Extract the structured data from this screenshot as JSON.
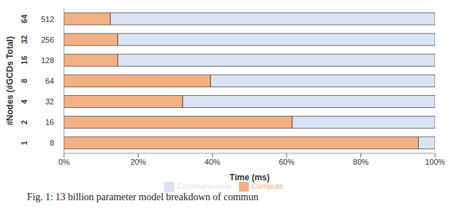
{
  "chart_data": {
    "type": "bar",
    "orientation": "horizontal",
    "stacked": true,
    "caption": "Fig. 1: 13 billion parameter model breakdown of commun",
    "x_label": "Time (ms)",
    "y_label": "#Nodes (#GCDs Total)",
    "categories": [
      "64",
      "32",
      "16",
      "8",
      "4",
      "2",
      "1"
    ],
    "gcds": [
      "512",
      "256",
      "128",
      "64",
      "32",
      "16",
      "8"
    ],
    "series": [
      {
        "name": "Compute",
        "color": "#f4b183",
        "values": [
          12.5,
          14.5,
          14.5,
          39.5,
          32,
          61.5,
          95.5
        ]
      },
      {
        "name": "Communication",
        "color": "#dae3f3",
        "values": [
          87.5,
          85.5,
          85.5,
          60.5,
          68,
          38.5,
          4.5
        ]
      }
    ],
    "xlim": [
      0,
      100
    ],
    "xticks": [
      {
        "value": 0,
        "label": "0%"
      },
      {
        "value": 20,
        "label": "20%"
      },
      {
        "value": 40,
        "label": "40%"
      },
      {
        "value": 60,
        "label": "60%"
      },
      {
        "value": 80,
        "label": "80%"
      },
      {
        "value": 100,
        "label": "100%"
      }
    ],
    "grid": false,
    "legend": "bottom"
  }
}
